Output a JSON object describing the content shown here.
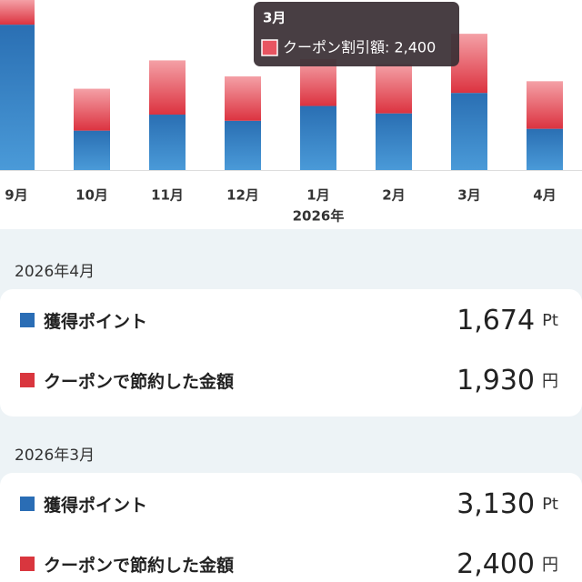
{
  "chart_data": {
    "type": "bar",
    "stacked": true,
    "categories": [
      "9月",
      "10月",
      "11月",
      "12月",
      "1月",
      "2月",
      "3月",
      "4月"
    ],
    "year_label": "2026年",
    "series": [
      {
        "name": "獲得ポイント",
        "color": "#2f7cc0",
        "values": [
          5900,
          1600,
          2250,
          2000,
          2600,
          2300,
          3130,
          1674
        ]
      },
      {
        "name": "クーポン割引額",
        "color": "#e85561",
        "values": [
          1000,
          1700,
          2200,
          1800,
          1900,
          2000,
          2400,
          1930
        ]
      }
    ],
    "ylim": [
      0,
      6900
    ],
    "tooltip": {
      "title": "3月",
      "text": "クーポン割引額: 2,400"
    }
  },
  "sections": [
    {
      "title": "2026年4月",
      "items": [
        {
          "label": "獲得ポイント",
          "value": "1,674",
          "unit": "Pt"
        },
        {
          "label": "クーポンで節約した金額",
          "value": "1,930",
          "unit": "円"
        }
      ]
    },
    {
      "title": "2026年3月",
      "items": [
        {
          "label": "獲得ポイント",
          "value": "3,130",
          "unit": "Pt"
        },
        {
          "label": "クーポンで節約した金額",
          "value": "2,400",
          "unit": "円"
        }
      ]
    }
  ]
}
